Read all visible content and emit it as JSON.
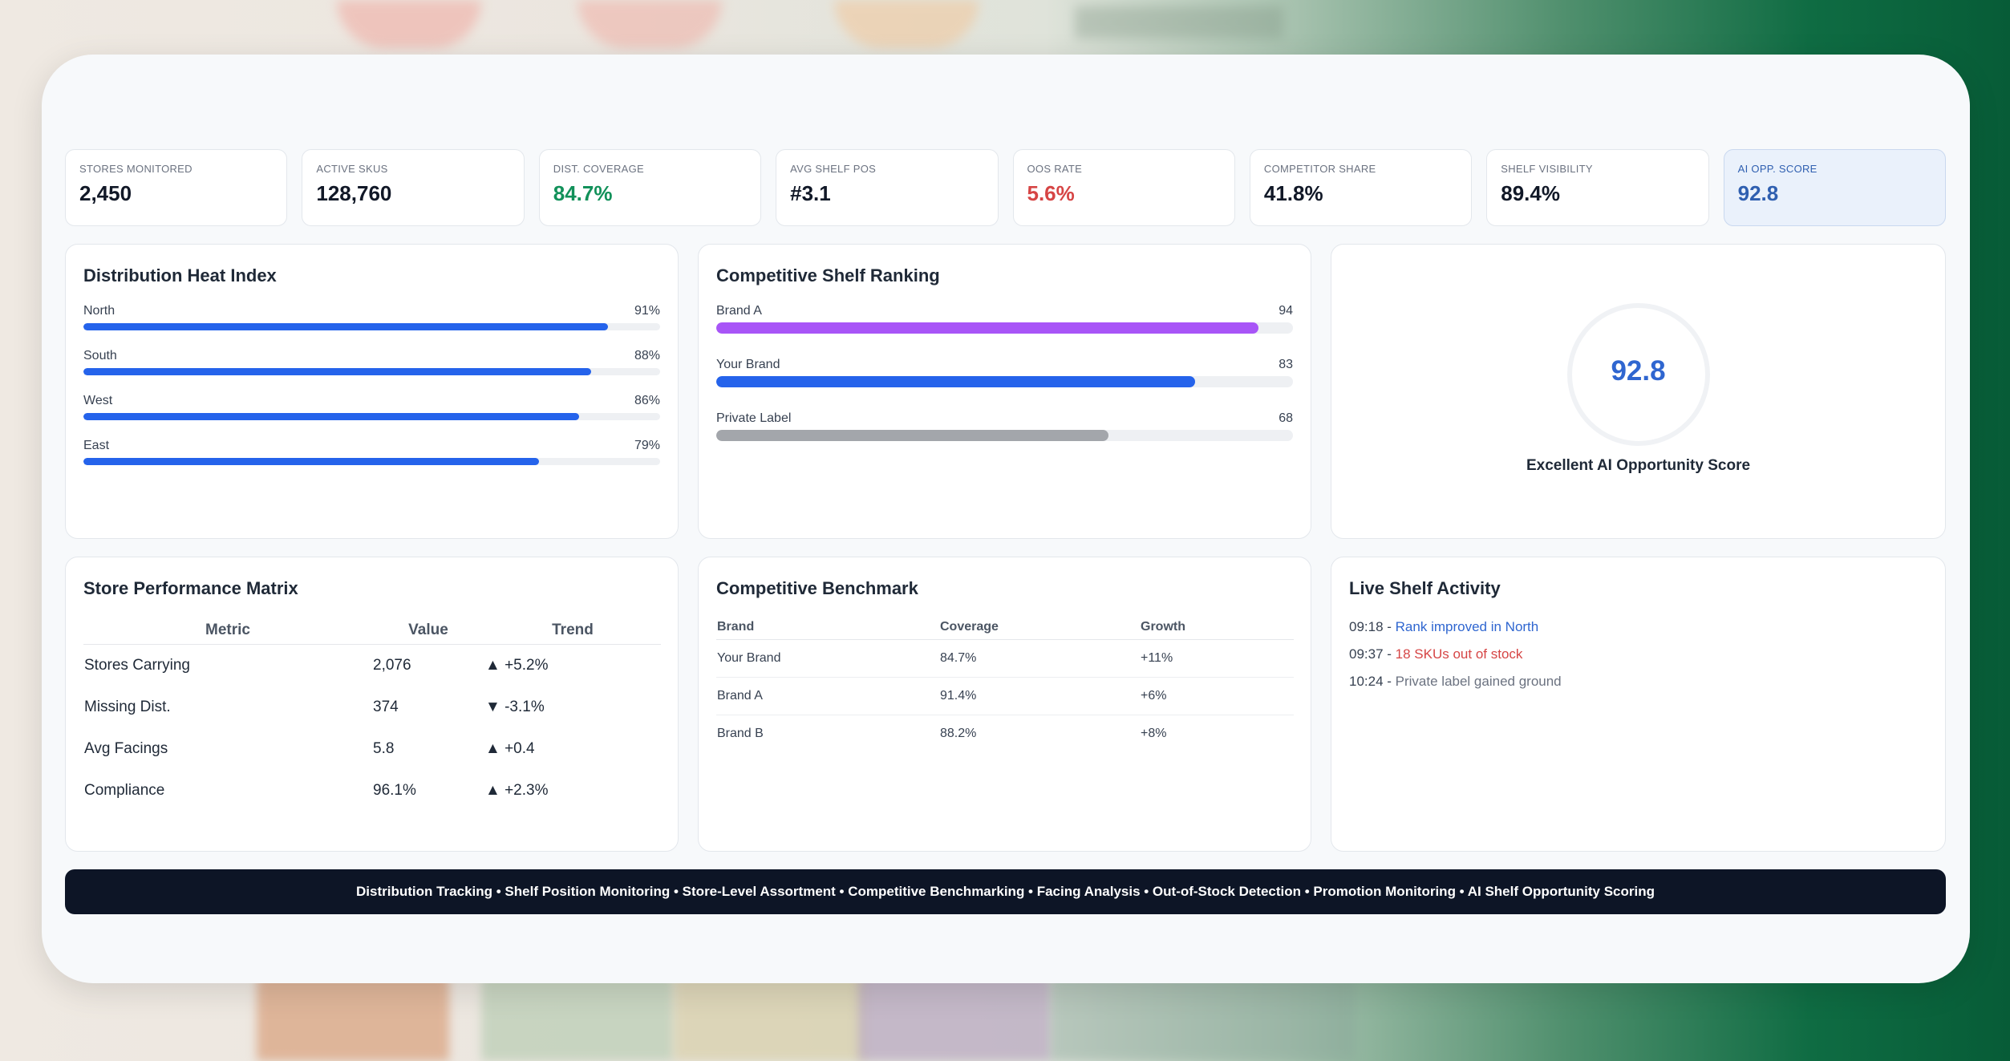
{
  "kpis": [
    {
      "label": "STORES MONITORED",
      "value": "2,450",
      "color": "#111827"
    },
    {
      "label": "ACTIVE SKUS",
      "value": "128,760",
      "color": "#111827"
    },
    {
      "label": "DIST. COVERAGE",
      "value": "84.7%",
      "color": "#12915a"
    },
    {
      "label": "AVG SHELF POS",
      "value": "#3.1",
      "color": "#111827"
    },
    {
      "label": "OOS RATE",
      "value": "5.6%",
      "color": "#d64545"
    },
    {
      "label": "COMPETITOR SHARE",
      "value": "41.8%",
      "color": "#111827"
    },
    {
      "label": "SHELF VISIBILITY",
      "value": "89.4%",
      "color": "#111827"
    },
    {
      "label": "AI OPP. SCORE",
      "value": "92.8",
      "color": "#2f5fb0"
    }
  ],
  "distribution": {
    "title": "Distribution Heat Index",
    "rows": [
      {
        "label": "North",
        "value_text": "91%",
        "value": 91
      },
      {
        "label": "South",
        "value_text": "88%",
        "value": 88
      },
      {
        "label": "West",
        "value_text": "86%",
        "value": 86
      },
      {
        "label": "East",
        "value_text": "79%",
        "value": 79
      }
    ],
    "bar_color": "#2563eb"
  },
  "ranking": {
    "title": "Competitive Shelf Ranking",
    "rows": [
      {
        "label": "Brand A",
        "value_text": "94",
        "value": 94,
        "color": "#a855f7"
      },
      {
        "label": "Your Brand",
        "value_text": "83",
        "value": 83,
        "color": "#2563eb"
      },
      {
        "label": "Private Label",
        "value_text": "68",
        "value": 68,
        "color": "#a3a6ab"
      }
    ]
  },
  "score": {
    "value": "92.8",
    "caption": "Excellent AI Opportunity Score",
    "color": "#2f66d0"
  },
  "matrix": {
    "title": "Store Performance Matrix",
    "headers": [
      "Metric",
      "Value",
      "Trend"
    ],
    "rows": [
      {
        "metric": "Stores Carrying",
        "value": "2,076",
        "trend": "▲ +5.2%",
        "dir": "up"
      },
      {
        "metric": "Missing Dist.",
        "value": "374",
        "trend": "▼ -3.1%",
        "dir": "down"
      },
      {
        "metric": "Avg Facings",
        "value": "5.8",
        "trend": "▲ +0.4",
        "dir": "up"
      },
      {
        "metric": "Compliance",
        "value": "96.1%",
        "trend": "▲ +2.3%",
        "dir": "up"
      }
    ]
  },
  "benchmark": {
    "title": "Competitive Benchmark",
    "headers": [
      "Brand",
      "Coverage",
      "Growth"
    ],
    "rows": [
      {
        "brand": "Your Brand",
        "coverage": "84.7%",
        "growth": "+11%",
        "highlight": true
      },
      {
        "brand": "Brand A",
        "coverage": "91.4%",
        "growth": "+6%",
        "highlight": false
      },
      {
        "brand": "Brand B",
        "coverage": "88.2%",
        "growth": "+8%",
        "highlight": false
      }
    ]
  },
  "activity": {
    "title": "Live Shelf Activity",
    "items": [
      {
        "time": "09:18",
        "text": "Rank improved in North",
        "color": "#2f66d0"
      },
      {
        "time": "09:37",
        "text": "18 SKUs out of stock",
        "color": "#d64545"
      },
      {
        "time": "10:24",
        "text": "Private label gained ground",
        "color": "#6b7280"
      }
    ]
  },
  "footer": {
    "text": "Distribution Tracking • Shelf Position Monitoring • Store-Level Assortment • Competitive Benchmarking • Facing Analysis • Out-of-Stock Detection • Promotion Monitoring • AI Shelf Opportunity Scoring"
  }
}
